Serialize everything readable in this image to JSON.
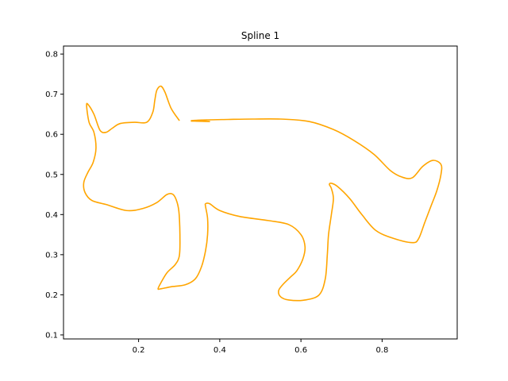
{
  "chart_data": {
    "type": "line",
    "title": "Spline 1",
    "xlabel": "",
    "ylabel": "",
    "xlim": [
      0.015,
      0.985
    ],
    "ylim": [
      0.09,
      0.82
    ],
    "x_ticks": [
      0.2,
      0.4,
      0.6,
      0.8
    ],
    "x_tick_labels": [
      "0.2",
      "0.4",
      "0.6",
      "0.8"
    ],
    "y_ticks": [
      0.1,
      0.2,
      0.3,
      0.4,
      0.5,
      0.6,
      0.7,
      0.8
    ],
    "y_tick_labels": [
      "0.1",
      "0.2",
      "0.3",
      "0.4",
      "0.5",
      "0.6",
      "0.7",
      "0.8"
    ],
    "grid": false,
    "legend": false,
    "series": [
      {
        "color": "#ffa500",
        "x": [
          0.3,
          0.28,
          0.265,
          0.255,
          0.245,
          0.24,
          0.235,
          0.22,
          0.19,
          0.155,
          0.135,
          0.12,
          0.105,
          0.09,
          0.075,
          0.072,
          0.078,
          0.09,
          0.095,
          0.088,
          0.075,
          0.065,
          0.068,
          0.085,
          0.12,
          0.17,
          0.21,
          0.245,
          0.27,
          0.285,
          0.295,
          0.3,
          0.302,
          0.3,
          0.29,
          0.27,
          0.255,
          0.248,
          0.255,
          0.28,
          0.315,
          0.34,
          0.355,
          0.365,
          0.37,
          0.37,
          0.365,
          0.365,
          0.375,
          0.4,
          0.45,
          0.52,
          0.57,
          0.6,
          0.61,
          0.605,
          0.59,
          0.575,
          0.555,
          0.545,
          0.55,
          0.57,
          0.61,
          0.645,
          0.66,
          0.665,
          0.668,
          0.675,
          0.68,
          0.675,
          0.67,
          0.675,
          0.69,
          0.72,
          0.75,
          0.785,
          0.83,
          0.875,
          0.89,
          0.905,
          0.92,
          0.935,
          0.945,
          0.945,
          0.925,
          0.9,
          0.875,
          0.85,
          0.82,
          0.78,
          0.73,
          0.68,
          0.62,
          0.55,
          0.48,
          0.42,
          0.37,
          0.33,
          0.375,
          0.33
        ],
        "y": [
          0.635,
          0.665,
          0.705,
          0.72,
          0.71,
          0.685,
          0.655,
          0.63,
          0.63,
          0.627,
          0.615,
          0.605,
          0.61,
          0.65,
          0.675,
          0.67,
          0.63,
          0.605,
          0.565,
          0.53,
          0.505,
          0.48,
          0.455,
          0.435,
          0.425,
          0.41,
          0.415,
          0.43,
          0.45,
          0.45,
          0.43,
          0.4,
          0.33,
          0.295,
          0.275,
          0.255,
          0.23,
          0.215,
          0.215,
          0.22,
          0.225,
          0.24,
          0.27,
          0.31,
          0.35,
          0.39,
          0.42,
          0.427,
          0.427,
          0.41,
          0.395,
          0.385,
          0.375,
          0.35,
          0.32,
          0.29,
          0.26,
          0.245,
          0.225,
          0.21,
          0.195,
          0.187,
          0.187,
          0.2,
          0.24,
          0.3,
          0.35,
          0.4,
          0.44,
          0.465,
          0.475,
          0.478,
          0.47,
          0.44,
          0.4,
          0.36,
          0.34,
          0.33,
          0.34,
          0.38,
          0.42,
          0.46,
          0.5,
          0.525,
          0.535,
          0.52,
          0.492,
          0.493,
          0.51,
          0.55,
          0.585,
          0.612,
          0.632,
          0.638,
          0.638,
          0.637,
          0.636,
          0.634,
          0.632,
          0.633
        ]
      }
    ]
  }
}
